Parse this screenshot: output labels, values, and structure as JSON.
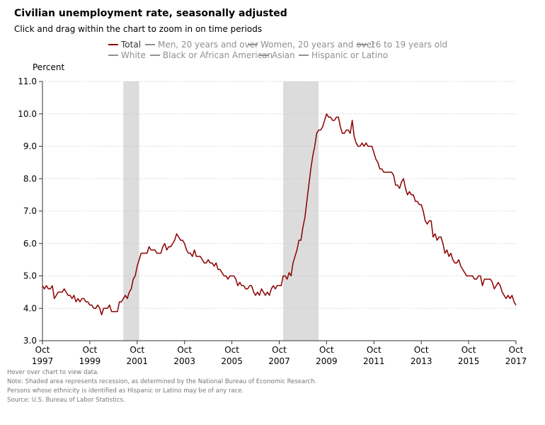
{
  "header": {
    "title": "Civilian unemployment rate, seasonally adjusted",
    "subtitle": "Click and drag within the chart to zoom in on time periods"
  },
  "legend": {
    "items": [
      {
        "label": "Total",
        "color": "#8b0000",
        "active": true
      },
      {
        "label": "Men, 20 years and over",
        "color": "#909090",
        "active": false
      },
      {
        "label": "Women, 20 years and over",
        "color": "#909090",
        "active": false
      },
      {
        "label": "16 to 19 years old",
        "color": "#909090",
        "active": false
      },
      {
        "label": "White",
        "color": "#909090",
        "active": false
      },
      {
        "label": "Black or African American",
        "color": "#909090",
        "active": false
      },
      {
        "label": "Asian",
        "color": "#909090",
        "active": false
      },
      {
        "label": "Hispanic or Latino",
        "color": "#909090",
        "active": false
      }
    ]
  },
  "notes": [
    "Hover over chart to view data.",
    "Note: Shaded area represents recession, as determined by the National Bureau of Economic Research.",
    "Persons whose ethnicity is identified as Hispanic or Latino may be of any race.",
    "Source: U.S. Bureau of Labor Statistics."
  ],
  "chart_data": {
    "type": "line",
    "title": "Civilian unemployment rate, seasonally adjusted",
    "ylabel": "Percent",
    "xlabel": "",
    "ylim": [
      3.0,
      11.0
    ],
    "yticks": [
      "3.0",
      "4.0",
      "5.0",
      "6.0",
      "7.0",
      "8.0",
      "9.0",
      "10.0",
      "11.0"
    ],
    "xlim": [
      "1997-10",
      "2017-10"
    ],
    "xticks": [
      {
        "month": "Oct",
        "year": "1997",
        "date": "1997-10"
      },
      {
        "month": "Oct",
        "year": "1999",
        "date": "1999-10"
      },
      {
        "month": "Oct",
        "year": "2001",
        "date": "2001-10"
      },
      {
        "month": "Oct",
        "year": "2003",
        "date": "2003-10"
      },
      {
        "month": "Oct",
        "year": "2005",
        "date": "2005-10"
      },
      {
        "month": "Oct",
        "year": "2007",
        "date": "2007-10"
      },
      {
        "month": "Oct",
        "year": "2009",
        "date": "2009-10"
      },
      {
        "month": "Oct",
        "year": "2011",
        "date": "2011-10"
      },
      {
        "month": "Oct",
        "year": "2013",
        "date": "2013-10"
      },
      {
        "month": "Oct",
        "year": "2015",
        "date": "2015-10"
      },
      {
        "month": "Oct",
        "year": "2017",
        "date": "2017-10"
      }
    ],
    "grid": true,
    "recessions": [
      {
        "start": "2001-03",
        "end": "2001-11"
      },
      {
        "start": "2007-12",
        "end": "2009-06"
      }
    ],
    "series": [
      {
        "name": "Total",
        "color": "#8b0000",
        "start": "1997-10",
        "frequency": "monthly",
        "values": [
          4.7,
          4.6,
          4.7,
          4.6,
          4.6,
          4.7,
          4.3,
          4.4,
          4.5,
          4.5,
          4.5,
          4.6,
          4.5,
          4.4,
          4.4,
          4.3,
          4.4,
          4.2,
          4.3,
          4.2,
          4.3,
          4.3,
          4.2,
          4.2,
          4.1,
          4.1,
          4.0,
          4.0,
          4.1,
          4.0,
          3.8,
          4.0,
          4.0,
          4.0,
          4.1,
          3.9,
          3.9,
          3.9,
          3.9,
          4.2,
          4.2,
          4.3,
          4.4,
          4.3,
          4.5,
          4.6,
          4.9,
          5.0,
          5.3,
          5.5,
          5.7,
          5.7,
          5.7,
          5.7,
          5.9,
          5.8,
          5.8,
          5.8,
          5.7,
          5.7,
          5.7,
          5.9,
          6.0,
          5.8,
          5.9,
          5.9,
          6.0,
          6.1,
          6.3,
          6.2,
          6.1,
          6.1,
          6.0,
          5.8,
          5.7,
          5.7,
          5.6,
          5.8,
          5.6,
          5.6,
          5.6,
          5.5,
          5.4,
          5.4,
          5.5,
          5.4,
          5.4,
          5.3,
          5.4,
          5.2,
          5.2,
          5.1,
          5.0,
          5.0,
          4.9,
          5.0,
          5.0,
          5.0,
          4.9,
          4.7,
          4.8,
          4.7,
          4.7,
          4.6,
          4.6,
          4.7,
          4.7,
          4.5,
          4.4,
          4.5,
          4.4,
          4.6,
          4.5,
          4.4,
          4.5,
          4.4,
          4.6,
          4.7,
          4.6,
          4.7,
          4.7,
          4.7,
          5.0,
          5.0,
          4.9,
          5.1,
          5.0,
          5.4,
          5.6,
          5.8,
          6.1,
          6.1,
          6.5,
          6.8,
          7.3,
          7.8,
          8.3,
          8.7,
          9.0,
          9.4,
          9.5,
          9.5,
          9.6,
          9.8,
          10.0,
          9.9,
          9.9,
          9.8,
          9.8,
          9.9,
          9.9,
          9.6,
          9.4,
          9.4,
          9.5,
          9.5,
          9.4,
          9.8,
          9.3,
          9.1,
          9.0,
          9.0,
          9.1,
          9.0,
          9.1,
          9.0,
          9.0,
          9.0,
          8.8,
          8.6,
          8.5,
          8.3,
          8.3,
          8.2,
          8.2,
          8.2,
          8.2,
          8.2,
          8.1,
          7.8,
          7.8,
          7.7,
          7.9,
          8.0,
          7.7,
          7.5,
          7.6,
          7.5,
          7.5,
          7.3,
          7.3,
          7.2,
          7.2,
          7.0,
          6.7,
          6.6,
          6.7,
          6.7,
          6.2,
          6.3,
          6.1,
          6.2,
          6.2,
          6.0,
          5.7,
          5.8,
          5.6,
          5.7,
          5.5,
          5.4,
          5.4,
          5.5,
          5.3,
          5.2,
          5.1,
          5.0,
          5.0,
          5.0,
          5.0,
          4.9,
          4.9,
          5.0,
          5.0,
          4.7,
          4.9,
          4.9,
          4.9,
          4.9,
          4.8,
          4.6,
          4.7,
          4.8,
          4.7,
          4.5,
          4.4,
          4.3,
          4.4,
          4.3,
          4.4,
          4.2,
          4.1
        ]
      }
    ]
  }
}
